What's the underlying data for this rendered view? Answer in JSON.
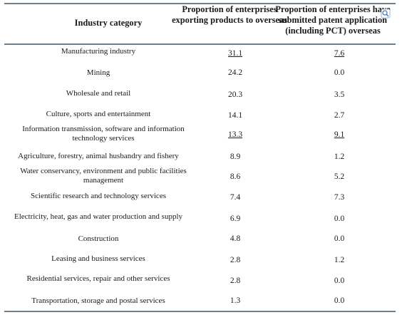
{
  "headers": {
    "category": "Industry category",
    "exporting": "Proportion of enterprises exporting products to overseas",
    "patent": "Proportion of enterprises have submitted patent application (including PCT) overseas"
  },
  "rows": [
    {
      "category": "Manufacturing industry",
      "exporting": "31.1",
      "patent": "7.6"
    },
    {
      "category": "Mining",
      "exporting": "24.2",
      "patent": "0.0"
    },
    {
      "category": "Wholesale and retail",
      "exporting": "20.3",
      "patent": "3.5"
    },
    {
      "category": "Culture, sports and entertainment",
      "exporting": "14.1",
      "patent": "2.7"
    },
    {
      "category": "Information transmission, software and information technology services",
      "exporting": "13.3",
      "patent": "9.1"
    },
    {
      "category": "Agriculture, forestry, animal husbandry and fishery",
      "exporting": "8.9",
      "patent": "1.2"
    },
    {
      "category": "Water conservancy, environment and public facilities management",
      "exporting": "8.6",
      "patent": "5.2"
    },
    {
      "category": "Scientific research and technology services",
      "exporting": "7.4",
      "patent": "7.3"
    },
    {
      "category": "Electricity, heat, gas and water production and supply",
      "exporting": "6.9",
      "patent": "0.0"
    },
    {
      "category": "Construction",
      "exporting": "4.8",
      "patent": "0.0"
    },
    {
      "category": "Leasing and business services",
      "exporting": "2.8",
      "patent": "1.2"
    },
    {
      "category": "Residential services, repair and other services",
      "exporting": "2.8",
      "patent": "0.0"
    },
    {
      "category": "Transportation, storage and postal services",
      "exporting": "1.3",
      "patent": "0.0"
    }
  ],
  "icon": "search-image-icon"
}
